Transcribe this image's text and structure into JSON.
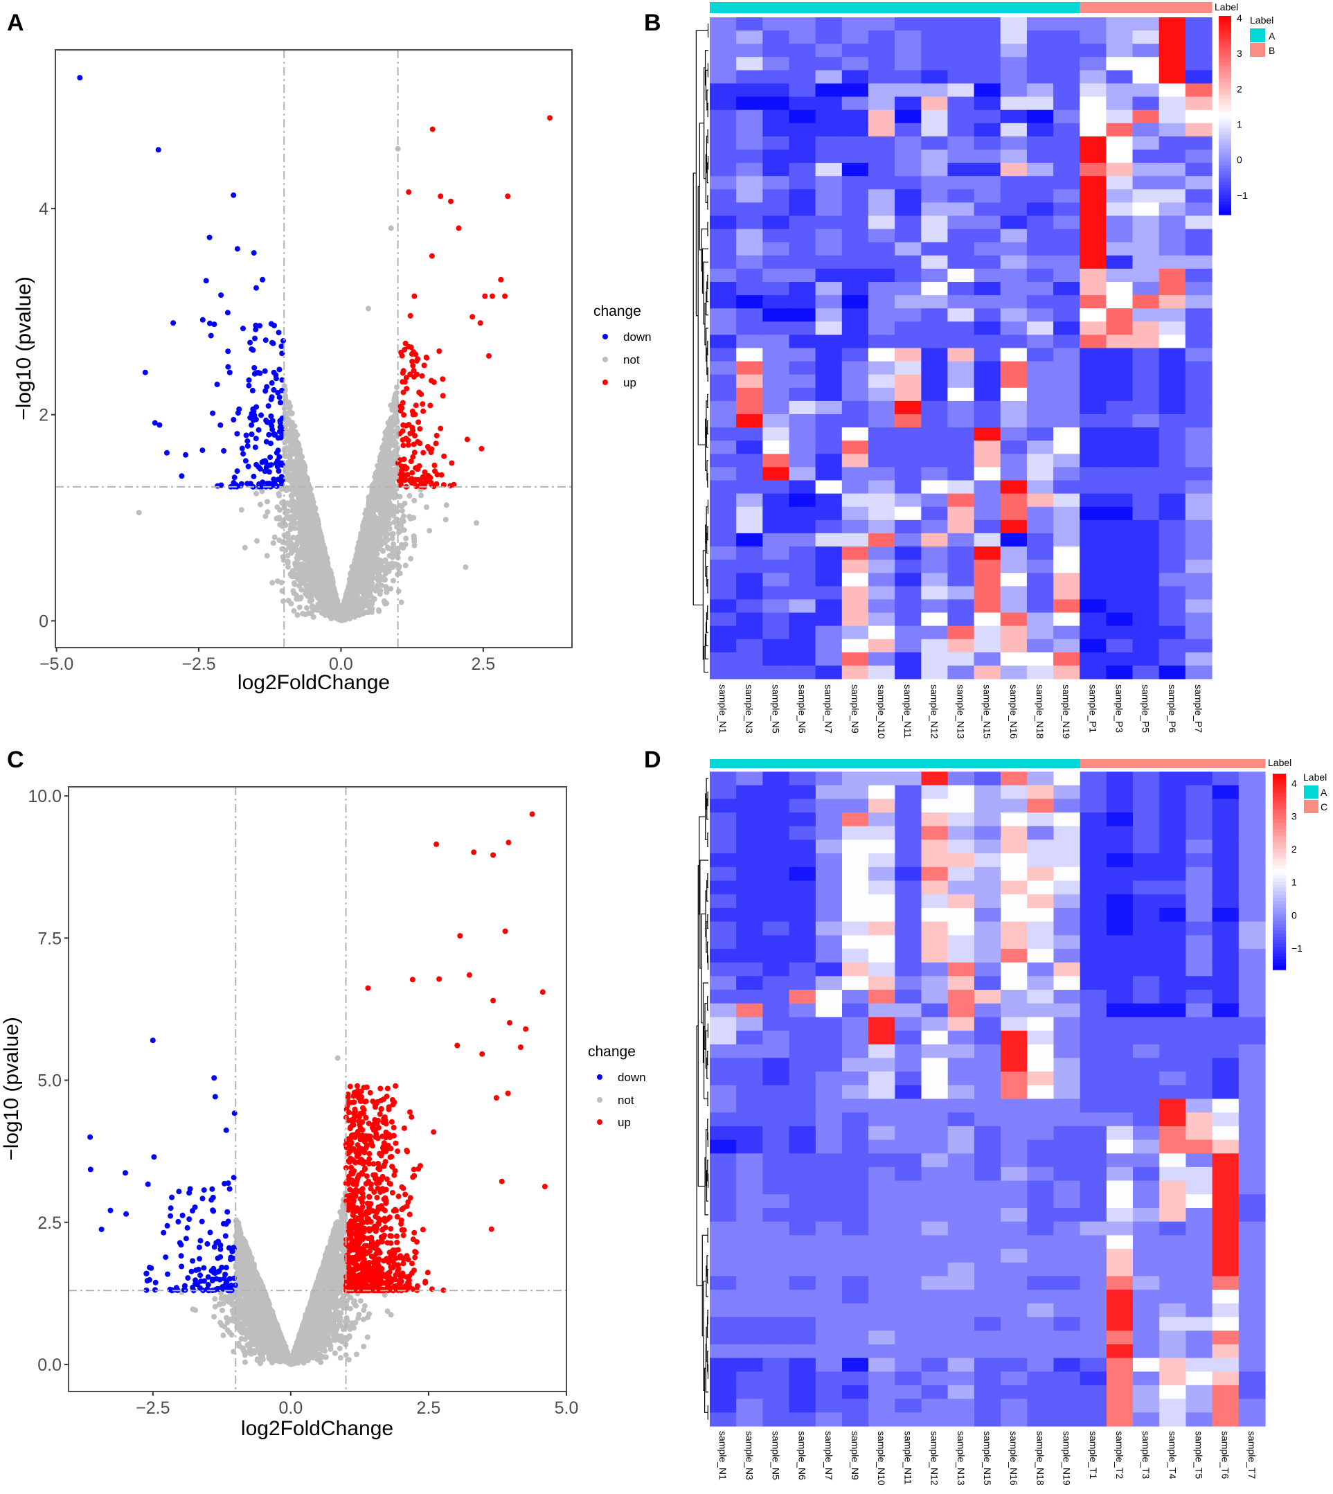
{
  "panel_labels": {
    "a": "A",
    "b": "B",
    "c": "C",
    "d": "D"
  },
  "colors": {
    "down": "#0000ff",
    "not": "#bebebe",
    "up": "#ff0000",
    "threshold_line": "#b3b3b3",
    "group_A": "#00d8d8",
    "group_B": "#fa8c84",
    "heat_low": "#0000ff",
    "heat_mid": "#ffffff",
    "heat_high": "#ff0000"
  },
  "chart_data": [
    {
      "type": "scatter",
      "panel": "A",
      "title": "",
      "xlabel": "log2FoldChange",
      "ylabel": "−log10 (pvalue)",
      "xlim": [
        -5.02,
        4.06
      ],
      "ylim": [
        -0.26,
        5.54
      ],
      "xticks": [
        -5,
        -2.5,
        0,
        2.5
      ],
      "xtick_labels": [
        "−5.0",
        "−2.5",
        "0.0",
        "2.5"
      ],
      "yticks": [
        0,
        2,
        4
      ],
      "ytick_labels": [
        "0",
        "2",
        "4"
      ],
      "grid": false,
      "thresholds": {
        "log2fc": [
          -1,
          1
        ],
        "neg_log10_p": 1.3
      },
      "legend": {
        "title": "change",
        "position": "right",
        "entries": [
          {
            "label": "down",
            "color": "#0000ff"
          },
          {
            "label": "not",
            "color": "#bebebe"
          },
          {
            "label": "up",
            "color": "#ff0000"
          }
        ]
      },
      "series": {
        "down": [
          [
            -4.59,
            5.27
          ],
          [
            -3.21,
            4.57
          ],
          [
            -1.89,
            4.13
          ],
          [
            -2.31,
            3.72
          ],
          [
            -1.82,
            3.61
          ],
          [
            -1.53,
            3.57
          ],
          [
            -2.37,
            3.3
          ],
          [
            -1.38,
            3.31
          ],
          [
            -1.49,
            3.23
          ],
          [
            -2.11,
            3.16
          ],
          [
            -2.95,
            2.89
          ],
          [
            -2.43,
            2.92
          ],
          [
            -1.99,
            2.99
          ],
          [
            -3.44,
            2.41
          ],
          [
            -3.27,
            1.92
          ],
          [
            -3.19,
            1.9
          ],
          [
            -3.06,
            1.63
          ],
          [
            -2.73,
            1.61
          ]
        ],
        "up": [
          [
            3.67,
            4.88
          ],
          [
            1.61,
            4.77
          ],
          [
            1.19,
            4.16
          ],
          [
            1.75,
            4.12
          ],
          [
            1.93,
            4.07
          ],
          [
            2.93,
            4.12
          ],
          [
            2.07,
            3.81
          ],
          [
            1.6,
            3.54
          ],
          [
            2.81,
            3.31
          ],
          [
            2.53,
            3.15
          ],
          [
            2.66,
            3.15
          ],
          [
            2.88,
            3.15
          ],
          [
            1.29,
            3.15
          ],
          [
            1.22,
            2.96
          ],
          [
            2.31,
            2.95
          ],
          [
            2.45,
            2.89
          ],
          [
            2.6,
            2.57
          ],
          [
            2.47,
            1.67
          ],
          [
            2.22,
            1.76
          ]
        ],
        "not": [
          [
            1.0,
            4.58
          ],
          [
            0.88,
            3.81
          ],
          [
            0.48,
            3.03
          ],
          [
            -3.55,
            1.05
          ],
          [
            2.38,
            0.95
          ],
          [
            2.19,
            0.52
          ]
        ]
      }
    },
    {
      "type": "heatmap",
      "panel": "B",
      "annotation_title": "Label",
      "columns": [
        "sample_N1",
        "sample_N3",
        "sample_N5",
        "sample_N6",
        "sample_N7",
        "sample_N9",
        "sample_N10",
        "sample_N11",
        "sample_N12",
        "sample_N13",
        "sample_N15",
        "sample_N16",
        "sample_N18",
        "sample_N19",
        "sample_P1",
        "sample_P3",
        "sample_P5",
        "sample_P6",
        "sample_P7"
      ],
      "column_groups": [
        "A",
        "A",
        "A",
        "A",
        "A",
        "A",
        "A",
        "A",
        "A",
        "A",
        "A",
        "A",
        "A",
        "A",
        "B",
        "B",
        "B",
        "B",
        "B"
      ],
      "group_legend": {
        "title": "Label",
        "entries": [
          {
            "label": "A",
            "color": "#00d8d8"
          },
          {
            "label": "B",
            "color": "#fa8c84"
          }
        ]
      },
      "colorbar": {
        "range": [
          -1.55,
          4.06
        ],
        "midpoint": 1.25,
        "ticks": [
          4,
          3,
          2,
          1,
          0,
          -1
        ],
        "tick_labels": [
          "4",
          "3",
          "2",
          "1",
          "0",
          "−1"
        ]
      },
      "level_values": [
        -1.4,
        -1.0,
        -0.55,
        -0.15,
        0.35,
        0.85,
        1.25,
        2.0,
        2.9,
        3.9
      ],
      "rows": [
        "3233233222253334492",
        "3423232322252234592",
        "3322322322242224392",
        "3532232322232236692",
        "3222412212232242691",
        "1112004445034254468",
        "1001134172155264257",
        "2310117052210365856",
        "2311117252151268347",
        "2321222323232296422",
        "2211222343342296223",
        "2312502341174287442",
        "3432322233322295334",
        "2421324132322394552",
        "2221324144221295643",
        "1212225253312393435",
        "2422323252242293432",
        "2432322422332294432",
        "2322222252243391444",
        "3233111236332374482",
        "1221413362133176383",
        "1011303443332286874",
        "3200413325243268442",
        "3222513222135178752",
        "1331112222223287762",
        "2633126717262311213",
        "3832134514183311212",
        "2733135714183311212",
        "2832134716163311212",
        "3835423923243312212",
        "3943223823243322322",
        "2253262222932611123",
        "3163282222724611123",
        "2283172222735411123",
        "3294133232635322222",
        "2221634265394222223",
        "2410155438387511214",
        "2511145627383400214",
        "2511234237293411123",
        "2033558373502411123",
        "3232183132942611123",
        "2222174232843611124",
        "2132163142862711133",
        "2122274254842711123",
        "1234173232842801124",
        "2121174262684610123",
        "1121346338574311113",
        "1211367357573402122",
        "2211383155366811124",
        "2222175153745710203"
      ]
    },
    {
      "type": "scatter",
      "panel": "C",
      "title": "",
      "xlabel": "log2FoldChange",
      "ylabel": "−log10 (pvalue)",
      "xlim": [
        -4.03,
        5.0
      ],
      "ylim": [
        -0.475,
        10.16
      ],
      "xticks": [
        -2.5,
        0,
        2.5,
        5
      ],
      "xtick_labels": [
        "−2.5",
        "0.0",
        "2.5",
        "5.0"
      ],
      "yticks": [
        0,
        2.5,
        5,
        7.5,
        10
      ],
      "ytick_labels": [
        "0.0",
        "2.5",
        "5.0",
        "7.5",
        "10.0"
      ],
      "grid": false,
      "thresholds": {
        "log2fc": [
          -1,
          1
        ],
        "neg_log10_p": 1.3
      },
      "legend": {
        "title": "change",
        "position": "right",
        "entries": [
          {
            "label": "down",
            "color": "#0000ff"
          },
          {
            "label": "not",
            "color": "#bebebe"
          },
          {
            "label": "up",
            "color": "#ff0000"
          }
        ]
      },
      "series": {
        "down": [
          [
            -2.5,
            5.7
          ],
          [
            -3.64,
            4.0
          ],
          [
            -3.63,
            3.43
          ],
          [
            -3.27,
            2.71
          ],
          [
            -3.0,
            3.37
          ],
          [
            -2.48,
            3.65
          ],
          [
            -2.59,
            3.17
          ],
          [
            -1.39,
            5.04
          ],
          [
            -1.17,
            4.12
          ],
          [
            -1.02,
            4.42
          ],
          [
            -1.37,
            4.71
          ]
        ],
        "up": [
          [
            4.38,
            9.68
          ],
          [
            3.95,
            9.18
          ],
          [
            2.64,
            9.15
          ],
          [
            3.32,
            9.01
          ],
          [
            3.67,
            8.96
          ],
          [
            3.07,
            7.54
          ],
          [
            3.89,
            7.62
          ],
          [
            4.57,
            6.55
          ],
          [
            3.24,
            6.85
          ],
          [
            3.67,
            6.4
          ],
          [
            3.97,
            6.01
          ],
          [
            4.26,
            5.9
          ],
          [
            4.17,
            5.58
          ],
          [
            4.61,
            3.13
          ],
          [
            3.83,
            3.22
          ],
          [
            3.64,
            2.38
          ],
          [
            3.94,
            4.77
          ],
          [
            3.73,
            4.69
          ],
          [
            3.47,
            5.46
          ],
          [
            3.02,
            5.61
          ],
          [
            2.44,
            1.46
          ],
          [
            2.21,
            6.77
          ],
          [
            1.4,
            6.62
          ],
          [
            2.69,
            6.78
          ]
        ],
        "not": [
          [
            0.85,
            5.39
          ]
        ]
      }
    },
    {
      "type": "heatmap",
      "panel": "D",
      "annotation_title": "Label",
      "columns": [
        "sample_N1",
        "sample_N3",
        "sample_N5",
        "sample_N6",
        "sample_N7",
        "sample_N9",
        "sample_N10",
        "sample_N11",
        "sample_N12",
        "sample_N13",
        "sample_N15",
        "sample_N16",
        "sample_N18",
        "sample_N19",
        "sample_T1",
        "sample_T2",
        "sample_T3",
        "sample_T4",
        "sample_T5",
        "sample_T6",
        "sample_T7"
      ],
      "column_groups": [
        "A",
        "A",
        "A",
        "A",
        "A",
        "A",
        "A",
        "A",
        "A",
        "A",
        "A",
        "A",
        "A",
        "A",
        "C",
        "C",
        "C",
        "C",
        "C",
        "C",
        "C"
      ],
      "group_legend": {
        "title": "Label",
        "entries": [
          {
            "label": "A",
            "color": "#00d8d8"
          },
          {
            "label": "C",
            "color": "#fa8c84"
          }
        ]
      },
      "colorbar": {
        "range": [
          -1.65,
          4.29
        ],
        "midpoint": 1.32,
        "ticks": [
          4,
          3,
          2,
          1,
          0,
          -1
        ],
        "tick_labels": [
          "4",
          "3",
          "2",
          "1",
          "0",
          "−1"
        ]
      },
      "level_values": [
        -1.4,
        -1.0,
        -0.55,
        -0.15,
        0.35,
        0.85,
        1.3,
        2.0,
        2.9,
        3.9
      ],
      "rows": [
        "231234449328462121123",
        "211144625645742121203",
        "111233726644832121213",
        "211138427546561021213",
        "211235528437351121213",
        "211146627547551121313",
        "111136527756551011213",
        "211036418546761111313",
        "111136527447651122313",
        "211136625746741011313",
        "111136626636631010303",
        "212145727647531011214",
        "211136627547541111314",
        "111135627548631111313",
        "221217523836371111313",
        "312246734726461121113",
        "222863824874532121213",
        "482362442834442000303",
        "542223934725632222222",
        "523223926329532222222",
        "333223534439632232223",
        "221224436339642222213",
        "221233526338742223213",
        "322234516438642222213",
        "322233333333332229463",
        "222232333233333329753",
        "112132433423322538763",
        "012132333423222648873",
        "232222224323222336393",
        "232222323324322425593",
        "232222333333232637593",
        "233222333333232637692",
        "232222333334222547392",
        "333232334333234432393",
        "333333333333333633393",
        "333333333334333733393",
        "333333333433333733393",
        "233232334433223843383",
        "333332333333333933363",
        "333333333333433934353",
        "222233333323323935563",
        "222233433333333834383",
        "333333333333333934373",
        "112130432422312867553",
        "122122323323221837672",
        "122121332422222846482",
        "132122323323222845483",
        "232232333323222835383"
      ]
    }
  ]
}
